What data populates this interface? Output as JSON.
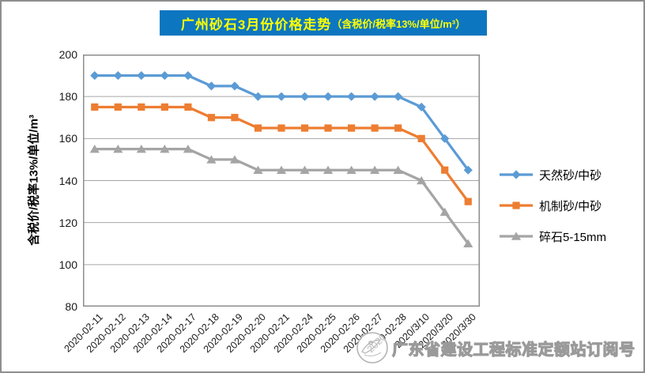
{
  "title": {
    "main": "广州砂石3月份价格走势",
    "paren": "（含税价/税率13%/单位/m³）",
    "bg_color": "#0d76c0",
    "text_color": "#ffff00"
  },
  "chart_data": {
    "type": "line",
    "title": "广州砂石3月份价格走势（含税价/税率13%/单位/m³）",
    "ylabel": "含税价/税率13%/单位/m³",
    "ylim": [
      80,
      200
    ],
    "yticks": [
      200,
      180,
      160,
      140,
      120,
      100,
      80
    ],
    "grid": true,
    "legend_position": "right",
    "categories": [
      "2020-02-11",
      "2020-02-12",
      "2020-02-13",
      "2020-02-14",
      "2020-02-17",
      "2020-02-18",
      "2020-02-19",
      "2020-02-20",
      "2020-02-21",
      "2020-02-24",
      "2020-02-25",
      "2020-02-26",
      "2020-02-27",
      "2020-02-28",
      "2020/3/10",
      "2020/3/20",
      "2020/3/30"
    ],
    "series": [
      {
        "name": "天然砂/中砂",
        "color": "#5B9BD5",
        "marker": "diamond",
        "values": [
          190,
          190,
          190,
          190,
          190,
          185,
          185,
          180,
          180,
          180,
          180,
          180,
          180,
          180,
          175,
          160,
          145
        ]
      },
      {
        "name": "机制砂/中砂",
        "color": "#ED7D31",
        "marker": "square",
        "values": [
          175,
          175,
          175,
          175,
          175,
          170,
          170,
          165,
          165,
          165,
          165,
          165,
          165,
          165,
          160,
          145,
          130
        ]
      },
      {
        "name": "碎石5-15mm",
        "color": "#A5A5A5",
        "marker": "triangle",
        "values": [
          155,
          155,
          155,
          155,
          155,
          150,
          150,
          145,
          145,
          145,
          145,
          145,
          145,
          145,
          140,
          125,
          110
        ]
      }
    ]
  },
  "watermark": {
    "text": "广东省建设工程标准定额站订阅号",
    "logo": "circular-emblem"
  },
  "colors": {
    "gridline": "#a6a6a6",
    "plot_border": "#8c8c8c",
    "axis_text": "#1a1a1a"
  }
}
